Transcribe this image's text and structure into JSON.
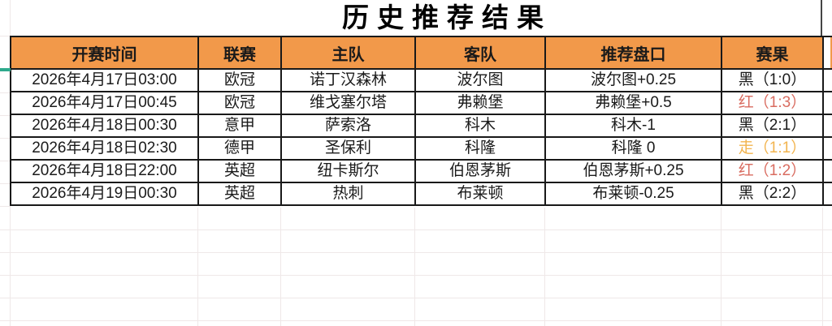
{
  "title": "历史推荐结果",
  "colors": {
    "header_fill": "#F2994A",
    "table_border": "#191919",
    "result_black": "#1a1a1a",
    "result_red": "#D96C60",
    "result_push": "#F2B44F",
    "accent_green": "#2EA98C",
    "gridline": "#EFE8E8"
  },
  "table": {
    "headers": [
      "开赛时间",
      "联赛",
      "主队",
      "客队",
      "推荐盘口",
      "赛果"
    ],
    "rows": [
      {
        "time": "2026年4月17日03:00",
        "league": "欧冠",
        "home": "诺丁汉森林",
        "away": "波尔图",
        "handicap": "波尔图+0.25",
        "result": "黑（1:0）",
        "result_type": "black"
      },
      {
        "time": "2026年4月17日00:45",
        "league": "欧冠",
        "home": "维戈塞尔塔",
        "away": "弗赖堡",
        "handicap": "弗赖堡+0.5",
        "result": "红（1:3）",
        "result_type": "red"
      },
      {
        "time": "2026年4月18日00:30",
        "league": "意甲",
        "home": "萨索洛",
        "away": "科木",
        "handicap": "科木-1",
        "result": "黑（2:1）",
        "result_type": "black"
      },
      {
        "time": "2026年4月18日02:30",
        "league": "德甲",
        "home": "圣保利",
        "away": "科隆",
        "handicap": "科隆 0",
        "result": "走（1:1）",
        "result_type": "push"
      },
      {
        "time": "2026年4月18日22:00",
        "league": "英超",
        "home": "纽卡斯尔",
        "away": "伯恩茅斯",
        "handicap": "伯恩茅斯+0.25",
        "result": "红（1:2）",
        "result_type": "red"
      },
      {
        "time": "2026年4月19日00:30",
        "league": "英超",
        "home": "热刺",
        "away": "布莱顿",
        "handicap": "布莱顿-0.25",
        "result": "黑（2:2）",
        "result_type": "black"
      }
    ]
  }
}
